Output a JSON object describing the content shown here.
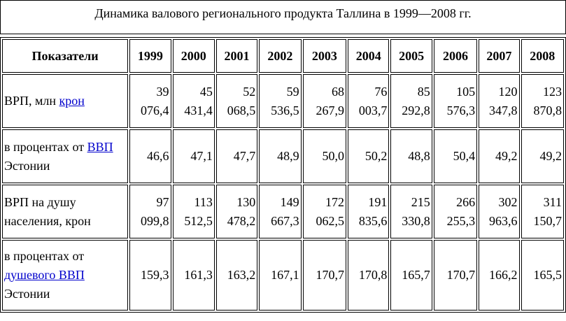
{
  "caption": "Динамика валового регионального продукта Таллина в 1999—2008 гг.",
  "header": [
    "Показатели",
    "1999",
    "2000",
    "2001",
    "2002",
    "2003",
    "2004",
    "2005",
    "2006",
    "2007",
    "2008"
  ],
  "rows": [
    {
      "label": [
        {
          "text": "ВРП, млн "
        },
        {
          "text": "крон",
          "link": true
        }
      ],
      "cells": [
        "39 076,4",
        "45 431,4",
        "52 068,5",
        "59 536,5",
        "68 267,9",
        "76 003,7",
        "85 292,8",
        "105 576,3",
        "120 347,8",
        "123 870,8"
      ]
    },
    {
      "label": [
        {
          "text": "в процентах от "
        },
        {
          "text": "ВВП",
          "link": true
        },
        {
          "text": " Эстонии"
        }
      ],
      "cells": [
        "46,6",
        "47,1",
        "47,7",
        "48,9",
        "50,0",
        "50,2",
        "48,8",
        "50,4",
        "49,2",
        "49,2"
      ]
    },
    {
      "label": [
        {
          "text": "ВРП на душу населения, крон"
        }
      ],
      "cells": [
        "97 099,8",
        "113 512,5",
        "130 478,2",
        "149 667,3",
        "172 062,5",
        "191 835,6",
        "215 330,8",
        "266 255,3",
        "302 963,6",
        "311 150,7"
      ]
    },
    {
      "label": [
        {
          "text": "в процентах от "
        },
        {
          "text": "душевого ВВП",
          "link": true
        },
        {
          "text": " Эстонии"
        }
      ],
      "cells": [
        "159,3",
        "161,3",
        "163,2",
        "167,1",
        "170,7",
        "170,8",
        "165,7",
        "170,7",
        "166,2",
        "165,5"
      ]
    }
  ]
}
